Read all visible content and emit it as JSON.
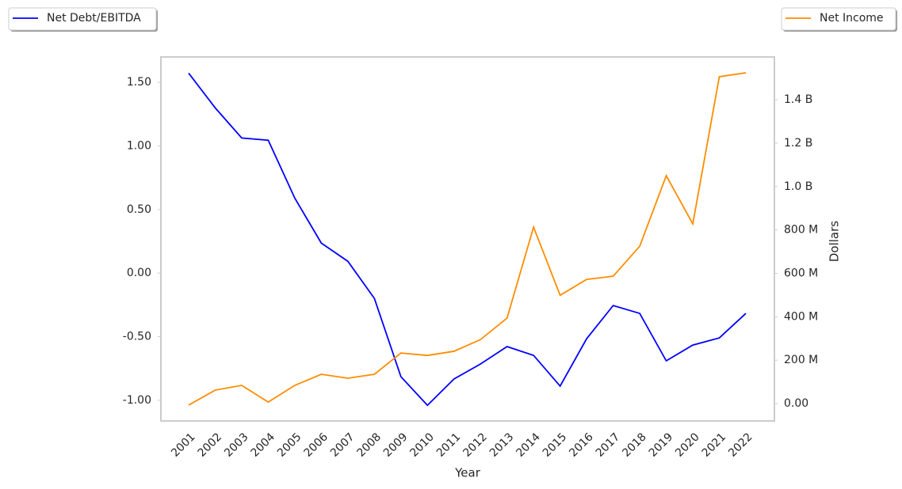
{
  "chart_data": {
    "type": "line",
    "x_label": "Year",
    "y2_label": "Dollars",
    "categories": [
      "2001",
      "2002",
      "2003",
      "2004",
      "2005",
      "2006",
      "2007",
      "2008",
      "2009",
      "2010",
      "2011",
      "2012",
      "2013",
      "2014",
      "2015",
      "2016",
      "2017",
      "2018",
      "2019",
      "2020",
      "2021",
      "2022"
    ],
    "series": [
      {
        "name": "Net Debt/EBITDA",
        "color": "#0000ff",
        "axis": "y",
        "values": [
          1.573,
          1.3,
          1.063,
          1.045,
          0.59,
          0.236,
          0.093,
          -0.199,
          -0.815,
          -1.04,
          -0.833,
          -0.715,
          -0.578,
          -0.647,
          -0.889,
          -0.516,
          -0.255,
          -0.317,
          -0.69,
          -0.566,
          -0.51,
          -0.317
        ]
      },
      {
        "name": "Net Income",
        "color": "#ff8c00",
        "axis": "y2",
        "values": [
          -7000000,
          62000000,
          84000000,
          7000000,
          84000000,
          135000000,
          117000000,
          135000000,
          233000000,
          222000000,
          241000000,
          295000000,
          394000000,
          813000000,
          499000000,
          572000000,
          587000000,
          725000000,
          1050000000,
          828000000,
          1506000000,
          1524000000
        ]
      }
    ],
    "ylim": [
      -1.163,
      1.7
    ],
    "yticks": [
      {
        "value": -1,
        "label": "-1.00"
      },
      {
        "value": -0.5,
        "label": "-0.50"
      },
      {
        "value": 0,
        "label": "0.00"
      },
      {
        "value": 0.5,
        "label": "0.50"
      },
      {
        "value": 1,
        "label": "1.00"
      },
      {
        "value": 1.5,
        "label": "1.50"
      }
    ],
    "y2lim": [
      -80000000,
      1597000000
    ],
    "y2ticks": [
      {
        "value": 0,
        "label": "0.00"
      },
      {
        "value": 200000000,
        "label": "200 M"
      },
      {
        "value": 400000000,
        "label": "400 M"
      },
      {
        "value": 600000000,
        "label": "600 M"
      },
      {
        "value": 800000000,
        "label": "800 M"
      },
      {
        "value": 1000000000,
        "label": "1.0 B"
      },
      {
        "value": 1200000000,
        "label": "1.2 B"
      },
      {
        "value": 1400000000,
        "label": "1.4 B"
      }
    ],
    "grid": false
  }
}
